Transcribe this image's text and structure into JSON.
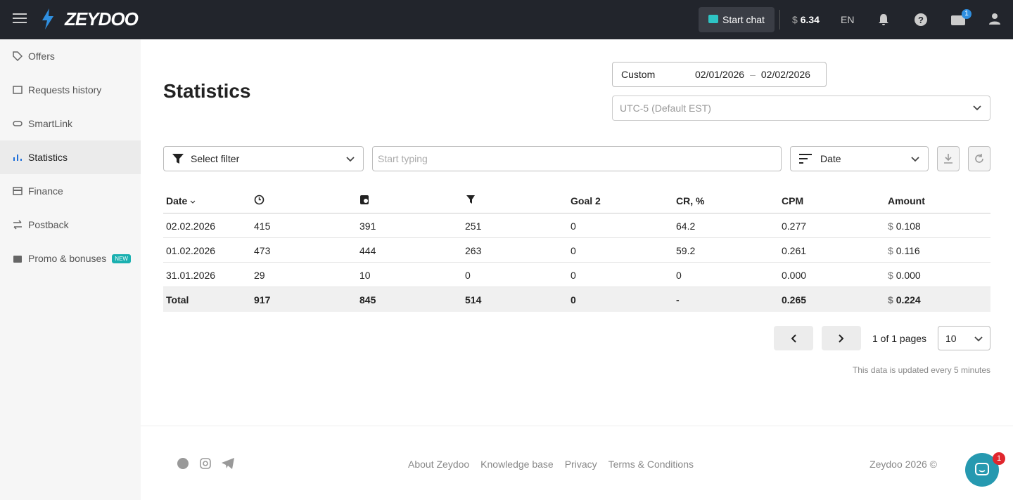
{
  "topbar": {
    "logo": "ZEYDOO",
    "chat": "Start chat",
    "currency": "$",
    "balance": "6.34",
    "language": "EN",
    "gift_badge": "1"
  },
  "sidebar": {
    "items": [
      "Offers",
      "Requests history",
      "SmartLink",
      "Statistics",
      "Finance",
      "Postback",
      "Promo & bonuses"
    ],
    "new_badge": "NEW"
  },
  "page": {
    "title": "Statistics",
    "date_preset": "Custom",
    "date_from": "02/01/2026",
    "date_separator": "–",
    "date_to": "02/02/2026",
    "timezone": "UTC-5 (Default EST)",
    "filter": "Select filter",
    "search_placeholder": "Start typing",
    "sort": "Date"
  },
  "table": {
    "headers": {
      "date": "Date",
      "goal2": "Goal 2",
      "cr": "CR, %",
      "cpm": "CPM",
      "amount": "Amount"
    },
    "currency": "$",
    "rows": [
      [
        "02.02.2026",
        "415",
        "391",
        "251",
        "0",
        "64.2",
        "0.277",
        "0.108"
      ],
      [
        "01.02.2026",
        "473",
        "444",
        "263",
        "0",
        "59.2",
        "0.261",
        "0.116"
      ],
      [
        "31.01.2026",
        "29",
        "10",
        "0",
        "0",
        "0",
        "0.000",
        "0.000"
      ]
    ],
    "total": [
      "Total",
      "917",
      "845",
      "514",
      "0",
      "-",
      "0.265",
      "0.224"
    ]
  },
  "pagination": {
    "status": "1 of 1 pages",
    "page_size": "10",
    "note": "This data is updated every 5 minutes"
  },
  "footer": {
    "links": [
      "About Zeydoo",
      "Knowledge base",
      "Privacy",
      "Terms & Conditions"
    ],
    "copyright": "Zeydoo 2026 ©",
    "chat_badge": "1"
  }
}
